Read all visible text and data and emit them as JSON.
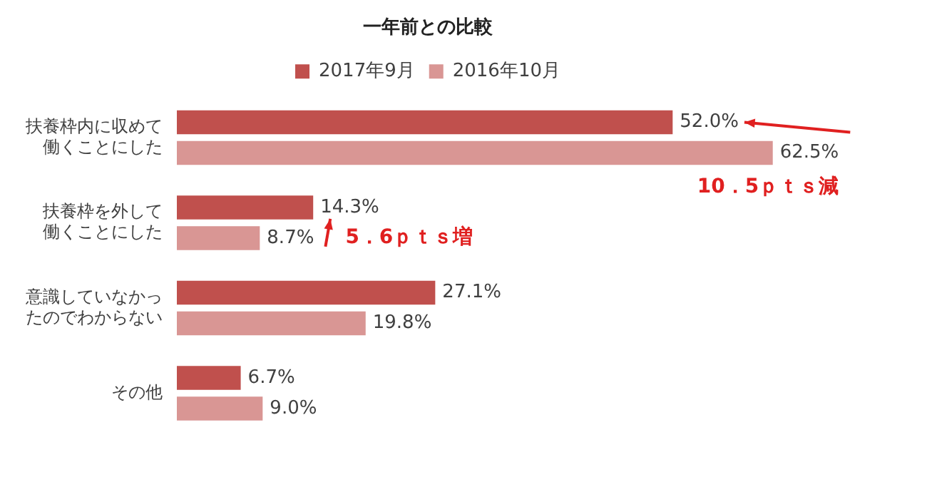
{
  "chart_data": {
    "type": "bar",
    "orientation": "horizontal",
    "title": "一年前との比較",
    "categories": [
      "扶養枠内に収めて働くことにした",
      "扶養枠を外して働くことにした",
      "意識していなかったのでわからない",
      "その他"
    ],
    "series": [
      {
        "name": "2017年9月",
        "color": "#c0504d",
        "values": [
          52.0,
          14.3,
          27.1,
          6.7
        ],
        "value_labels": [
          "52.0%",
          "14.3%",
          "27.1%",
          "6.7%"
        ]
      },
      {
        "name": "2016年10月",
        "color": "#d99694",
        "values": [
          62.5,
          8.7,
          19.8,
          9.0
        ],
        "value_labels": [
          "62.5%",
          "8.7%",
          "19.8%",
          "9.0%"
        ]
      }
    ],
    "annotations": [
      {
        "text": "10．5ｐｔｓ減",
        "x": 52.0,
        "y": "扶養枠内に収めて働くことにした"
      },
      {
        "text": "5．6ｐｔｓ増",
        "x": 14.3,
        "y": "扶養枠を外して働くことにした"
      }
    ],
    "legend": "top",
    "grid": false
  }
}
